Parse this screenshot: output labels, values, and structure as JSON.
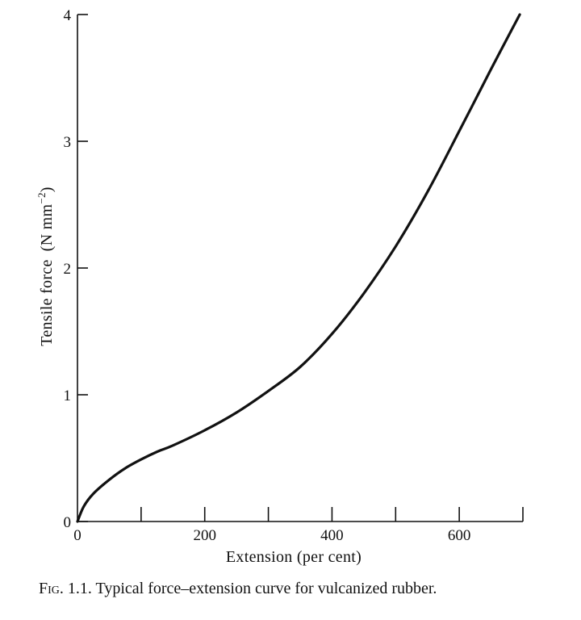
{
  "caption": {
    "prefix": "Fig. 1.1.",
    "text": "Typical force–extension curve for vulcanized rubber."
  },
  "chart_data": {
    "type": "line",
    "title": "",
    "xlabel": "Extension (per cent)",
    "ylabel_main": "Tensile force",
    "ylabel_unit": "(N mm",
    "ylabel_exp": "−2",
    "ylabel_close": ")",
    "xlim": [
      0,
      700
    ],
    "ylim": [
      0,
      4
    ],
    "x_ticks": [
      0,
      100,
      200,
      300,
      400,
      500,
      600,
      700
    ],
    "x_tick_labels": [
      "0",
      "",
      "200",
      "",
      "400",
      "",
      "600",
      ""
    ],
    "y_ticks": [
      0,
      1,
      2,
      3,
      4
    ],
    "y_tick_labels": [
      "0",
      "1",
      "2",
      "3",
      "4"
    ],
    "grid": false,
    "series": [
      {
        "x": [
          0,
          10,
          25,
          50,
          75,
          100,
          125,
          150,
          200,
          250,
          300,
          350,
          400,
          450,
          500,
          550,
          600,
          650,
          695
        ],
        "y": [
          0,
          0.12,
          0.22,
          0.33,
          0.42,
          0.49,
          0.55,
          0.6,
          0.72,
          0.86,
          1.03,
          1.22,
          1.48,
          1.8,
          2.17,
          2.6,
          3.08,
          3.57,
          4.0
        ]
      }
    ]
  }
}
